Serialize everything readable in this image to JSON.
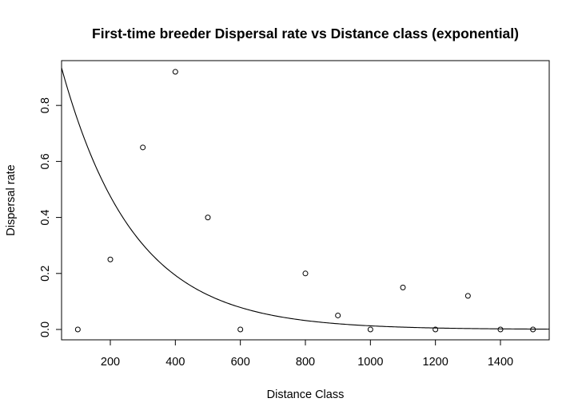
{
  "chart_data": {
    "type": "scatter",
    "title": "First-time breeder Dispersal rate vs Distance class (exponential)",
    "xlabel": "Distance Class",
    "ylabel": "Dispersal rate",
    "xlim": [
      50,
      1550
    ],
    "ylim": [
      -0.037,
      0.96
    ],
    "xticks": [
      200,
      400,
      600,
      800,
      1000,
      1200,
      1400
    ],
    "yticks": [
      0.0,
      0.2,
      0.4,
      0.6,
      0.8
    ],
    "ytick_labels": [
      "0.0",
      "0.2",
      "0.4",
      "0.6",
      "0.8"
    ],
    "grid": false,
    "legend": "none",
    "series": [
      {
        "kind": "points",
        "x": [
          100,
          200,
          300,
          400,
          500,
          600,
          800,
          900,
          1000,
          1100,
          1200,
          1300,
          1400,
          1500
        ],
        "y": [
          0.0,
          0.25,
          0.65,
          0.92,
          0.4,
          0.0,
          0.2,
          0.05,
          0.0,
          0.15,
          0.0,
          0.12,
          0.0,
          0.0
        ]
      },
      {
        "kind": "fitted-curve",
        "model": "exponential",
        "formula": "y = a * exp(-b * x)",
        "a": 1.17,
        "b": 0.0045,
        "x_range": [
          50,
          1550
        ]
      }
    ]
  }
}
